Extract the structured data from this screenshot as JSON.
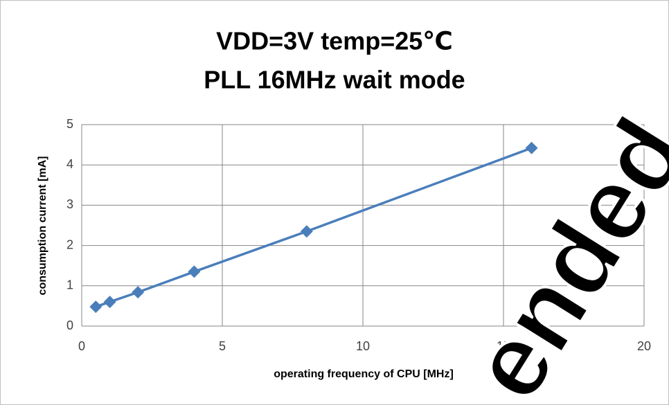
{
  "chart_data": {
    "type": "line",
    "title": [
      "VDD=3V temp=25℃",
      "PLL 16MHz wait mode"
    ],
    "x_label": "operating frequency of CPU [MHz]",
    "y_label": "consumption current [mA]",
    "x": [
      0.5,
      1,
      2,
      4,
      8,
      16
    ],
    "series": [
      {
        "name": "consumption current",
        "color": "#4a7ebb",
        "values": [
          0.48,
          0.6,
          0.84,
          1.35,
          2.35,
          4.42
        ]
      }
    ],
    "xlim": [
      0,
      20
    ],
    "xticks": [
      0,
      5,
      10,
      15,
      20
    ],
    "ylim": [
      0,
      5
    ],
    "yticks": [
      0,
      1,
      2,
      3,
      4,
      5
    ],
    "grid": true,
    "annotations": [
      "ended"
    ]
  }
}
